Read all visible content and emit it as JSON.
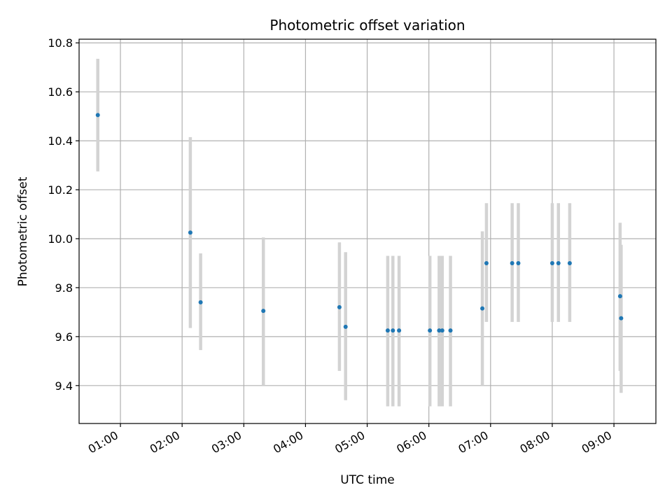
{
  "chart_data": {
    "type": "scatter",
    "title": "Photometric offset variation",
    "xlabel": "UTC time",
    "ylabel": "Photometric offset",
    "x_ticks": [
      "01:00",
      "02:00",
      "03:00",
      "04:00",
      "05:00",
      "06:00",
      "07:00",
      "08:00",
      "09:00"
    ],
    "x_tick_hours": [
      1,
      2,
      3,
      4,
      5,
      6,
      7,
      8,
      9
    ],
    "y_ticks": [
      "9.4",
      "9.6",
      "9.8",
      "10.0",
      "10.2",
      "10.4",
      "10.6",
      "10.8"
    ],
    "y_tick_values": [
      9.4,
      9.6,
      9.8,
      10.0,
      10.2,
      10.4,
      10.6,
      10.8
    ],
    "xlim_hours": [
      0.33,
      9.68
    ],
    "ylim": [
      9.245,
      10.815
    ],
    "grid": true,
    "marker_color": "#1f77b4",
    "errorbar_color": "#d3d3d3",
    "points": [
      {
        "time": "00:38",
        "y": 10.505,
        "ylow": 10.275,
        "yhigh": 10.735
      },
      {
        "time": "02:08",
        "y": 10.025,
        "ylow": 9.635,
        "yhigh": 10.415
      },
      {
        "time": "02:18",
        "y": 9.74,
        "ylow": 9.545,
        "yhigh": 9.94
      },
      {
        "time": "03:19",
        "y": 9.705,
        "ylow": 9.4,
        "yhigh": 10.005
      },
      {
        "time": "04:33",
        "y": 9.72,
        "ylow": 9.46,
        "yhigh": 9.985
      },
      {
        "time": "04:39",
        "y": 9.64,
        "ylow": 9.34,
        "yhigh": 9.945
      },
      {
        "time": "05:20",
        "y": 9.625,
        "ylow": 9.315,
        "yhigh": 9.93
      },
      {
        "time": "05:25",
        "y": 9.625,
        "ylow": 9.315,
        "yhigh": 9.93
      },
      {
        "time": "05:31",
        "y": 9.625,
        "ylow": 9.315,
        "yhigh": 9.93
      },
      {
        "time": "06:01",
        "y": 9.625,
        "ylow": 9.315,
        "yhigh": 9.93
      },
      {
        "time": "06:10",
        "y": 9.625,
        "ylow": 9.315,
        "yhigh": 9.93
      },
      {
        "time": "06:13",
        "y": 9.625,
        "ylow": 9.315,
        "yhigh": 9.93
      },
      {
        "time": "06:21",
        "y": 9.625,
        "ylow": 9.315,
        "yhigh": 9.93
      },
      {
        "time": "06:52",
        "y": 9.715,
        "ylow": 9.4,
        "yhigh": 10.03
      },
      {
        "time": "06:56",
        "y": 9.9,
        "ylow": 9.66,
        "yhigh": 10.145
      },
      {
        "time": "07:21",
        "y": 9.9,
        "ylow": 9.66,
        "yhigh": 10.145
      },
      {
        "time": "07:27",
        "y": 9.9,
        "ylow": 9.66,
        "yhigh": 10.145
      },
      {
        "time": "08:00",
        "y": 9.9,
        "ylow": 9.66,
        "yhigh": 10.145
      },
      {
        "time": "08:06",
        "y": 9.9,
        "ylow": 9.66,
        "yhigh": 10.145
      },
      {
        "time": "08:17",
        "y": 9.9,
        "ylow": 9.66,
        "yhigh": 10.145
      },
      {
        "time": "09:06",
        "y": 9.765,
        "ylow": 9.46,
        "yhigh": 10.065
      },
      {
        "time": "09:07",
        "y": 9.675,
        "ylow": 9.37,
        "yhigh": 9.975
      }
    ]
  }
}
